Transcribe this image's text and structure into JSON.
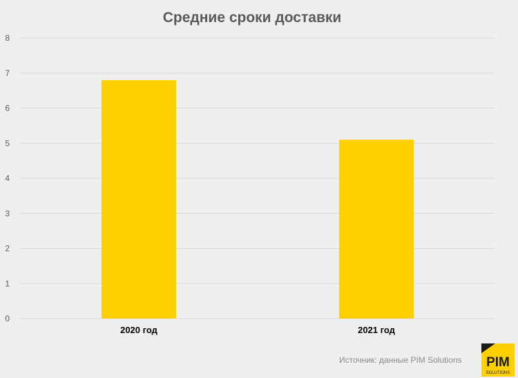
{
  "chart_data": {
    "type": "bar",
    "title": "Средние сроки доставки",
    "categories": [
      "2020 год",
      "2021 год"
    ],
    "values": [
      6.8,
      5.1
    ],
    "ylim": [
      0,
      8
    ],
    "yticks": [
      0,
      1,
      2,
      3,
      4,
      5,
      6,
      7,
      8
    ],
    "grid": true,
    "bar_color": "#ffd000",
    "grid_color": "#d9d9d9"
  },
  "source_note": "Источник: данные PIM Solutions",
  "logo": {
    "text": "PIM",
    "subtext": "SOLUTIONS",
    "color": "#ffd000"
  }
}
